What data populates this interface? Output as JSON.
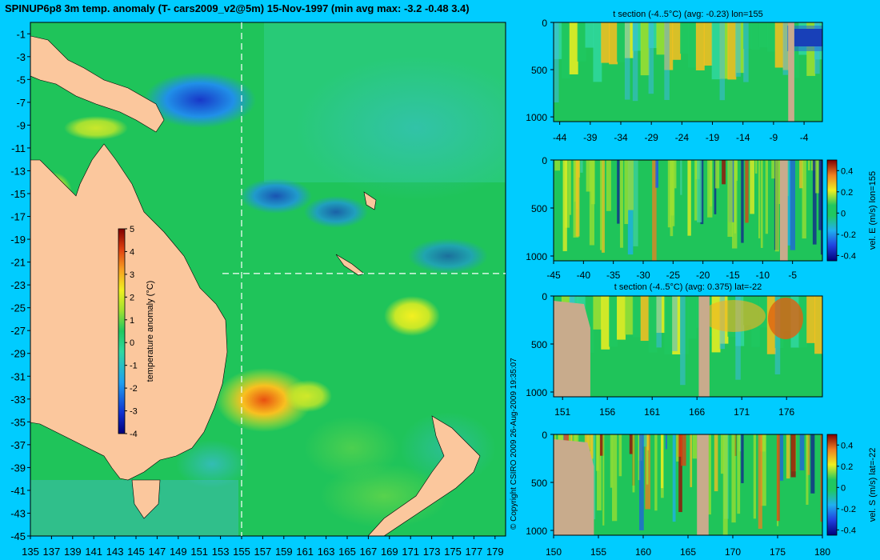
{
  "title": "SPINUP6p8 3m temp. anomaly (T- cars2009_v2@5m) 15-Nov-1997 (min avg max: -3.2 -0.48 3.4)",
  "copyright": "© Copyright CSIRO 2009  26-Aug-2009 19:35:07",
  "colors": {
    "background": "#00ccff",
    "land": "#fbc79d",
    "section_land": "#c8ab8c",
    "ocean_base": "#1fc45a"
  },
  "chart_data": [
    {
      "id": "map",
      "type": "heatmap",
      "title": "SPINUP6p8 3m temp. anomaly (T- cars2009_v2@5m) 15-Nov-1997 (min avg max: -3.2 -0.48 3.4)",
      "x_ticks": [
        "135",
        "137",
        "139",
        "141",
        "143",
        "145",
        "147",
        "149",
        "151",
        "153",
        "155",
        "157",
        "159",
        "161",
        "163",
        "165",
        "167",
        "169",
        "171",
        "173",
        "175",
        "177",
        "179"
      ],
      "y_ticks": [
        "-1",
        "-3",
        "-5",
        "-7",
        "-9",
        "-11",
        "-13",
        "-15",
        "-17",
        "-19",
        "-21",
        "-23",
        "-25",
        "-27",
        "-29",
        "-31",
        "-33",
        "-35",
        "-37",
        "-39",
        "-41",
        "-43",
        "-45"
      ],
      "xlim": [
        135,
        180
      ],
      "ylim": [
        -45,
        0
      ],
      "section_lines": {
        "lon": 155,
        "lat": -22
      },
      "colorbar": {
        "label": "temperature anomaly (°C)",
        "ticks": [
          "5",
          "4",
          "3",
          "2",
          "1",
          "0",
          "-1",
          "-2",
          "-3",
          "-4"
        ],
        "range": [
          -4,
          5
        ]
      }
    },
    {
      "id": "panel1",
      "type": "heatmap",
      "title": "t section (-4..5°C) (avg: -0.23) lon=155",
      "x_ticks": [
        "-44",
        "-39",
        "-34",
        "-29",
        "-24",
        "-19",
        "-14",
        "-9",
        "-4"
      ],
      "y_ticks": [
        "0",
        "500",
        "1000"
      ],
      "xlim": [
        -45,
        -1
      ],
      "ylim": [
        1050,
        0
      ]
    },
    {
      "id": "panel2",
      "type": "heatmap",
      "title": "",
      "x_ticks": [
        "-45",
        "-40",
        "-35",
        "-30",
        "-25",
        "-20",
        "-15",
        "-10",
        "-5"
      ],
      "y_ticks": [
        "0",
        "500",
        "1000"
      ],
      "xlim": [
        -45,
        0
      ],
      "ylim": [
        1050,
        0
      ],
      "colorbar": {
        "label": "vel. E (m/s) lon=155",
        "ticks": [
          "0.4",
          "0.2",
          "0",
          "-0.2",
          "-0.4"
        ],
        "range": [
          -0.45,
          0.5
        ]
      }
    },
    {
      "id": "panel3",
      "type": "heatmap",
      "title": "t section (-4..5°C) (avg: 0.375) lat=-22",
      "x_ticks": [
        "151",
        "156",
        "161",
        "166",
        "171",
        "176"
      ],
      "y_ticks": [
        "0",
        "500",
        "1000"
      ],
      "xlim": [
        150,
        180
      ],
      "ylim": [
        1050,
        0
      ]
    },
    {
      "id": "panel4",
      "type": "heatmap",
      "title": "",
      "x_ticks": [
        "150",
        "155",
        "160",
        "165",
        "170",
        "175",
        "180"
      ],
      "y_ticks": [
        "0",
        "500",
        "1000"
      ],
      "xlim": [
        150,
        180
      ],
      "ylim": [
        1050,
        0
      ],
      "colorbar": {
        "label": "vel. S (m/s) lat=-22",
        "ticks": [
          "0.4",
          "0.2",
          "0",
          "-0.2",
          "-0.4"
        ],
        "range": [
          -0.45,
          0.5
        ]
      }
    }
  ]
}
